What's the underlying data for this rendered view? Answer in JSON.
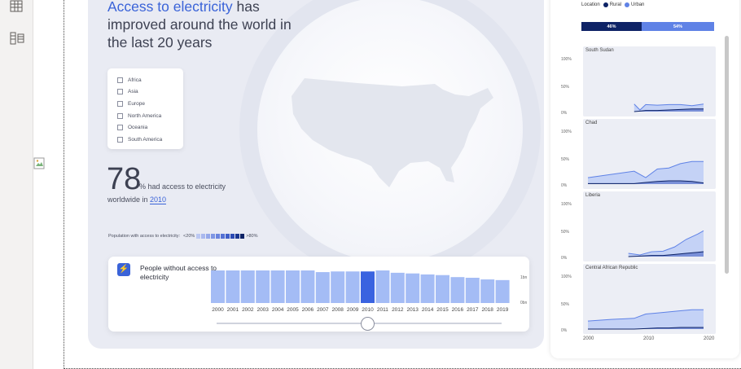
{
  "headline": {
    "accent": "Access to electricity",
    "rest": " has improved around the world in the last 20 years"
  },
  "regions": [
    "Africa",
    "Asia",
    "Europe",
    "North America",
    "Oceania",
    "South America"
  ],
  "stat": {
    "value": "78",
    "text1": "% had access to electricity",
    "text2_prefix": "worldwide in ",
    "year": "2010"
  },
  "access_legend": {
    "label": "Population with access to electricity:",
    "low": "<20%",
    "high": ">80%",
    "colors": [
      "#bcc8f2",
      "#a9b8ee",
      "#95a8ea",
      "#7f96e4",
      "#6a84de",
      "#5471d4",
      "#3f5ec8",
      "#2b4ab4",
      "#1a3690",
      "#0e2366"
    ]
  },
  "people_card": {
    "title": "People without access to electricity",
    "y_top": "1bn",
    "y_bottom": "0bn",
    "selected_year": "2010"
  },
  "chart_data": [
    {
      "type": "bar",
      "categories": [
        "2000",
        "2001",
        "2002",
        "2003",
        "2004",
        "2005",
        "2006",
        "2007",
        "2008",
        "2009",
        "2010",
        "2011",
        "2012",
        "2013",
        "2014",
        "2015",
        "2016",
        "2017",
        "2018",
        "2019"
      ],
      "values": [
        1.0,
        1.03,
        1.01,
        1.0,
        1.0,
        1.01,
        0.98,
        0.93,
        0.95,
        0.95,
        0.95,
        1.02,
        0.91,
        0.89,
        0.86,
        0.84,
        0.78,
        0.76,
        0.71,
        0.69
      ],
      "ylim": [
        0,
        1.25
      ],
      "highlight": "2010"
    },
    {
      "type": "area",
      "panels": [
        {
          "title": "South Sudan",
          "series": [
            {
              "name": "Rural",
              "x": [
                2008,
                2009,
                2010,
                2012,
                2014,
                2016,
                2018,
                2020
              ],
              "values": [
                0,
                1,
                2,
                2,
                3,
                4,
                5,
                5
              ]
            },
            {
              "name": "Urban",
              "x": [
                2008,
                2009,
                2010,
                2012,
                2014,
                2016,
                2018,
                2020
              ],
              "values": [
                14,
                3,
                13,
                12,
                13,
                13,
                11,
                14
              ]
            }
          ]
        },
        {
          "title": "Chad",
          "series": [
            {
              "name": "Rural",
              "x": [
                2000,
                2004,
                2008,
                2010,
                2012,
                2014,
                2016,
                2018,
                2020
              ],
              "values": [
                1,
                1,
                1,
                3,
                5,
                6,
                6,
                5,
                2
              ]
            },
            {
              "name": "Urban",
              "x": [
                2000,
                2004,
                2008,
                2010,
                2012,
                2014,
                2016,
                2018,
                2020
              ],
              "values": [
                12,
                18,
                24,
                12,
                28,
                30,
                38,
                42,
                42
              ]
            }
          ]
        },
        {
          "title": "Liberia",
          "series": [
            {
              "name": "Rural",
              "x": [
                2007,
                2009,
                2011,
                2013,
                2015,
                2017,
                2019,
                2020
              ],
              "values": [
                0,
                1,
                2,
                2,
                4,
                6,
                8,
                9
              ]
            },
            {
              "name": "Urban",
              "x": [
                2007,
                2009,
                2011,
                2013,
                2015,
                2017,
                2019,
                2020
              ],
              "values": [
                6,
                3,
                9,
                10,
                18,
                32,
                42,
                48
              ]
            }
          ]
        },
        {
          "title": "Central African Republic",
          "series": [
            {
              "name": "Rural",
              "x": [
                2000,
                2004,
                2008,
                2010,
                2012,
                2014,
                2016,
                2018,
                2020
              ],
              "values": [
                0,
                0,
                0,
                1,
                2,
                2,
                3,
                3,
                3
              ]
            },
            {
              "name": "Urban",
              "x": [
                2000,
                2004,
                2008,
                2010,
                2012,
                2014,
                2016,
                2018,
                2020
              ],
              "values": [
                15,
                18,
                20,
                28,
                30,
                32,
                34,
                36,
                36
              ]
            }
          ]
        }
      ],
      "y_ticks": [
        "100%",
        "50%",
        "0%"
      ],
      "x_ticks": [
        "2000",
        "2010",
        "2020"
      ]
    }
  ],
  "location_legend": {
    "label": "Location",
    "rural": "Rural",
    "urban": "Urban",
    "rural_pct": "46%",
    "urban_pct": "54%",
    "rural_color": "#0e2366",
    "urban_color": "#5f82e6"
  }
}
